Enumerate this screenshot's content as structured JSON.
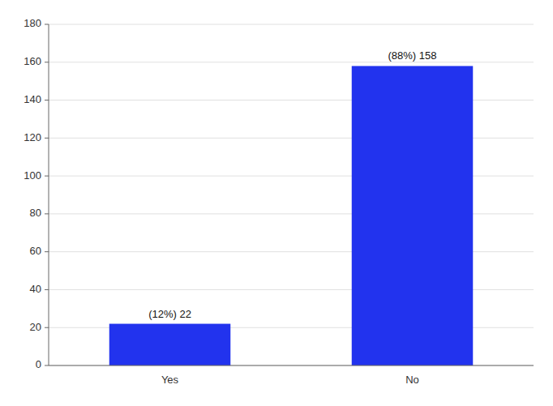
{
  "chart_data": {
    "type": "bar",
    "categories": [
      "Yes",
      "No"
    ],
    "values": [
      22,
      158
    ],
    "value_labels": [
      "(12%) 22",
      "(88%) 158"
    ],
    "data_labels": true,
    "color": "#2233EE",
    "ylim": [
      0,
      180
    ],
    "yticks": [
      0,
      20,
      40,
      60,
      80,
      100,
      120,
      140,
      160,
      180
    ],
    "grid": true
  }
}
